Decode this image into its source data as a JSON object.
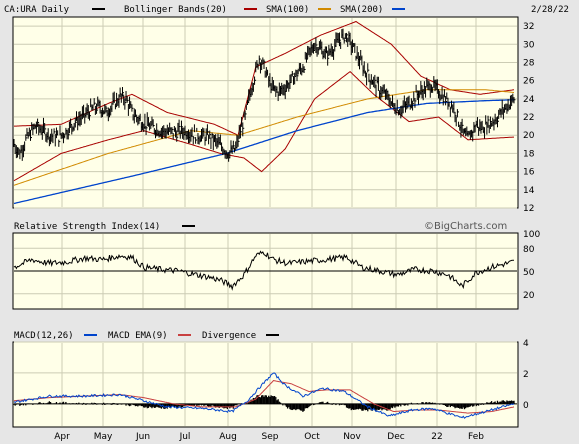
{
  "colors": {
    "background": "#E6E6E6",
    "plot_bg": "#FFFFE8",
    "price": "#000000",
    "bollinger": "#A80000",
    "sma100": "#D18A00",
    "sma200": "#0044CC",
    "macd_ema": "#C84040",
    "rsi": "#000000",
    "grid": "#CCCCB4",
    "border": "#000000"
  },
  "header": {
    "ticker_label": "CA:URA Daily",
    "bollinger_label": "Bollinger Bands(20)",
    "sma100_label": "SMA(100)",
    "sma200_label": "SMA(200)",
    "date": "2/28/22"
  },
  "rsi_panel": {
    "label": "Relative Strength Index(14)",
    "watermark": "©BigCharts.com"
  },
  "macd_panel": {
    "label": "MACD(12,26)",
    "ema_label": "MACD EMA(9)",
    "divergence_label": "Divergence"
  },
  "icons": {
    "price_legend": "black-dash-icon",
    "bollinger_legend": "red-dash-icon",
    "sma100_legend": "orange-dash-icon",
    "sma200_legend": "blue-dash-icon",
    "rsi_legend": "black-dash-icon",
    "macd_legend": "blue-dash-icon",
    "macd_ema_legend": "red-dash-icon",
    "divergence_legend": "black-dash-icon"
  },
  "chart_data": [
    {
      "type": "line",
      "title": "CA:URA Daily",
      "x": [
        "Apr",
        "May",
        "Jun",
        "Jul",
        "Aug",
        "Sep",
        "Oct",
        "Nov",
        "Dec",
        "22",
        "Jan",
        "Feb"
      ],
      "xlabel": "",
      "ylabel": "",
      "ylim": [
        12,
        33
      ],
      "yticks": [
        12,
        14,
        16,
        18,
        20,
        22,
        24,
        26,
        28,
        30,
        32
      ],
      "grid": true,
      "series": [
        {
          "name": "CA:URA Daily",
          "keypoints": [
            [
              0,
              19.0
            ],
            [
              5,
              18.0
            ],
            [
              10,
              19.5
            ],
            [
              18,
              21.0
            ],
            [
              25,
              20.5
            ],
            [
              30,
              20.0
            ],
            [
              38,
              19.8
            ],
            [
              45,
              20.5
            ],
            [
              52,
              21.5
            ],
            [
              58,
              22.0
            ],
            [
              65,
              22.8
            ],
            [
              72,
              23.2
            ],
            [
              78,
              22.5
            ],
            [
              85,
              23.5
            ],
            [
              90,
              24.2
            ],
            [
              95,
              24.0
            ],
            [
              100,
              22.5
            ],
            [
              108,
              21.5
            ],
            [
              115,
              21.0
            ],
            [
              125,
              20.5
            ],
            [
              135,
              20.3
            ],
            [
              145,
              20.5
            ],
            [
              155,
              20.0
            ],
            [
              165,
              19.8
            ],
            [
              172,
              19.2
            ],
            [
              178,
              18.5
            ],
            [
              182,
              18.0
            ],
            [
              188,
              18.5
            ],
            [
              192,
              20.5
            ],
            [
              196,
              22.0
            ],
            [
              200,
              24.5
            ],
            [
              204,
              26.5
            ],
            [
              208,
              28.5
            ],
            [
              212,
              27.5
            ],
            [
              216,
              26.0
            ],
            [
              220,
              25.0
            ],
            [
              225,
              24.8
            ],
            [
              232,
              25.5
            ],
            [
              238,
              26.5
            ],
            [
              245,
              27.5
            ],
            [
              250,
              29.0
            ],
            [
              255,
              30.0
            ],
            [
              260,
              29.5
            ],
            [
              265,
              28.8
            ],
            [
              270,
              29.5
            ],
            [
              276,
              30.5
            ],
            [
              281,
              31.0
            ],
            [
              286,
              30.0
            ],
            [
              292,
              28.5
            ],
            [
              298,
              27.0
            ],
            [
              304,
              26.0
            ],
            [
              310,
              25.0
            ],
            [
              316,
              24.3
            ],
            [
              322,
              23.2
            ],
            [
              328,
              22.8
            ],
            [
              335,
              23.5
            ],
            [
              342,
              24.5
            ],
            [
              348,
              25.0
            ],
            [
              354,
              25.5
            ],
            [
              360,
              24.8
            ],
            [
              366,
              24.0
            ],
            [
              372,
              23.2
            ],
            [
              376,
              22.0
            ],
            [
              380,
              20.5
            ],
            [
              384,
              19.6
            ],
            [
              388,
              20.2
            ],
            [
              392,
              21.2
            ],
            [
              396,
              20.8
            ],
            [
              400,
              21.0
            ],
            [
              405,
              21.4
            ],
            [
              410,
              22.0
            ],
            [
              415,
              22.8
            ],
            [
              420,
              23.5
            ],
            [
              424,
              24.0
            ]
          ]
        },
        {
          "name": "Bollinger Bands(20)",
          "keypoints": [
            [
              0,
              21.0
            ],
            [
              40,
              21.2
            ],
            [
              80,
              23.5
            ],
            [
              100,
              24.5
            ],
            [
              130,
              22.5
            ],
            [
              170,
              21.2
            ],
            [
              190,
              20.0
            ],
            [
              205,
              27.5
            ],
            [
              230,
              29.0
            ],
            [
              260,
              31.0
            ],
            [
              290,
              32.5
            ],
            [
              320,
              30.0
            ],
            [
              345,
              26.5
            ],
            [
              370,
              25.0
            ],
            [
              395,
              24.5
            ],
            [
              424,
              25.0
            ]
          ]
        },
        {
          "name": "Bollinger Bands(20) lower",
          "keypoints": [
            [
              0,
              15.0
            ],
            [
              40,
              18.0
            ],
            [
              80,
              19.5
            ],
            [
              110,
              20.5
            ],
            [
              150,
              19.0
            ],
            [
              175,
              18.0
            ],
            [
              195,
              17.5
            ],
            [
              210,
              16.0
            ],
            [
              230,
              18.5
            ],
            [
              255,
              24.0
            ],
            [
              285,
              27.0
            ],
            [
              305,
              24.5
            ],
            [
              335,
              21.5
            ],
            [
              360,
              22.0
            ],
            [
              385,
              19.5
            ],
            [
              424,
              19.8
            ]
          ]
        },
        {
          "name": "SMA(100)",
          "keypoints": [
            [
              0,
              14.5
            ],
            [
              80,
              18.0
            ],
            [
              150,
              20.5
            ],
            [
              190,
              20.0
            ],
            [
              240,
              22.0
            ],
            [
              300,
              24.0
            ],
            [
              350,
              25.0
            ],
            [
              400,
              25.0
            ],
            [
              424,
              24.7
            ]
          ]
        },
        {
          "name": "SMA(200)",
          "keypoints": [
            [
              0,
              12.5
            ],
            [
              100,
              15.5
            ],
            [
              180,
              18.0
            ],
            [
              240,
              20.5
            ],
            [
              300,
              22.5
            ],
            [
              350,
              23.5
            ],
            [
              400,
              23.8
            ],
            [
              424,
              23.9
            ]
          ]
        }
      ]
    },
    {
      "type": "line",
      "title": "Relative Strength Index(14)",
      "ylim": [
        0,
        100
      ],
      "yticks": [
        20,
        50,
        80,
        100
      ],
      "grid": true,
      "series": [
        {
          "name": "Relative Strength Index(14)",
          "keypoints": [
            [
              0,
              55
            ],
            [
              15,
              65
            ],
            [
              30,
              60
            ],
            [
              45,
              62
            ],
            [
              60,
              67
            ],
            [
              75,
              65
            ],
            [
              90,
              70
            ],
            [
              100,
              68
            ],
            [
              110,
              55
            ],
            [
              125,
              52
            ],
            [
              140,
              50
            ],
            [
              155,
              45
            ],
            [
              165,
              42
            ],
            [
              175,
              38
            ],
            [
              185,
              30
            ],
            [
              195,
              45
            ],
            [
              205,
              70
            ],
            [
              212,
              75
            ],
            [
              220,
              65
            ],
            [
              232,
              60
            ],
            [
              245,
              62
            ],
            [
              258,
              64
            ],
            [
              270,
              66
            ],
            [
              282,
              68
            ],
            [
              295,
              55
            ],
            [
              310,
              50
            ],
            [
              325,
              45
            ],
            [
              340,
              52
            ],
            [
              355,
              50
            ],
            [
              368,
              45
            ],
            [
              380,
              30
            ],
            [
              392,
              48
            ],
            [
              405,
              55
            ],
            [
              418,
              60
            ],
            [
              424,
              62
            ]
          ]
        }
      ]
    },
    {
      "type": "line",
      "title": "MACD(12,26)",
      "ylim": [
        -1.5,
        4
      ],
      "yticks": [
        0,
        2,
        4
      ],
      "grid": true,
      "series": [
        {
          "name": "MACD(12,26)",
          "keypoints": [
            [
              0,
              0.1
            ],
            [
              30,
              0.5
            ],
            [
              60,
              0.5
            ],
            [
              90,
              0.6
            ],
            [
              105,
              0.3
            ],
            [
              130,
              -0.2
            ],
            [
              160,
              -0.3
            ],
            [
              185,
              -0.5
            ],
            [
              198,
              0.2
            ],
            [
              210,
              1.2
            ],
            [
              220,
              2.0
            ],
            [
              230,
              1.2
            ],
            [
              245,
              0.5
            ],
            [
              262,
              1.0
            ],
            [
              280,
              0.8
            ],
            [
              300,
              -0.2
            ],
            [
              318,
              -0.8
            ],
            [
              338,
              -0.4
            ],
            [
              355,
              -0.3
            ],
            [
              380,
              -0.9
            ],
            [
              400,
              -0.5
            ],
            [
              424,
              0
            ]
          ]
        },
        {
          "name": "MACD EMA(9)",
          "keypoints": [
            [
              0,
              0.2
            ],
            [
              30,
              0.4
            ],
            [
              60,
              0.5
            ],
            [
              90,
              0.6
            ],
            [
              110,
              0.4
            ],
            [
              135,
              0
            ],
            [
              160,
              -0.2
            ],
            [
              188,
              -0.2
            ],
            [
              205,
              0.3
            ],
            [
              220,
              1.5
            ],
            [
              235,
              1.3
            ],
            [
              250,
              0.8
            ],
            [
              265,
              0.9
            ],
            [
              285,
              0.9
            ],
            [
              305,
              0
            ],
            [
              322,
              -0.5
            ],
            [
              340,
              -0.4
            ],
            [
              360,
              -0.4
            ],
            [
              385,
              -0.6
            ],
            [
              405,
              -0.5
            ],
            [
              424,
              -0.2
            ]
          ]
        },
        {
          "name": "Divergence",
          "keypoints": [
            [
              0,
              -0.05
            ],
            [
              30,
              0.1
            ],
            [
              60,
              0
            ],
            [
              90,
              0
            ],
            [
              105,
              -0.1
            ],
            [
              130,
              -0.15
            ],
            [
              160,
              -0.1
            ],
            [
              185,
              -0.3
            ],
            [
              198,
              0
            ],
            [
              210,
              0.5
            ],
            [
              220,
              0.6
            ],
            [
              230,
              0
            ],
            [
              245,
              -0.3
            ],
            [
              262,
              0.1
            ],
            [
              280,
              0
            ],
            [
              300,
              -0.2
            ],
            [
              318,
              -0.3
            ],
            [
              338,
              0
            ],
            [
              355,
              0.1
            ],
            [
              380,
              -0.3
            ],
            [
              400,
              0
            ],
            [
              424,
              0.2
            ]
          ]
        }
      ]
    }
  ]
}
